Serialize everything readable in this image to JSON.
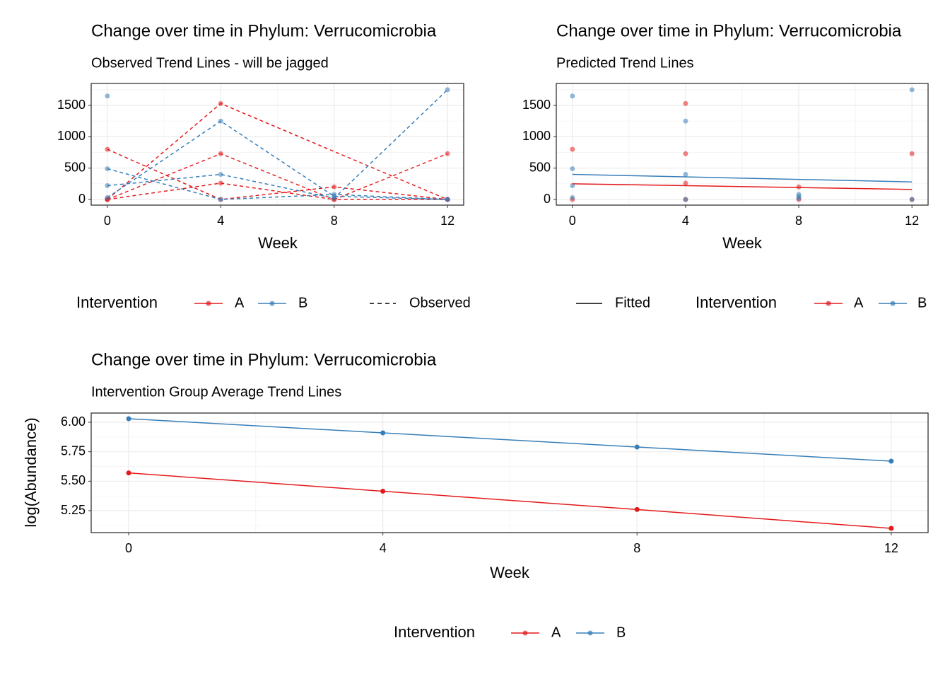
{
  "chart_data": [
    {
      "type": "line",
      "title": "Change over time in Phylum: Verrucomicrobia",
      "subtitle": "Observed Trend Lines - will be jagged",
      "xlabel": "Week",
      "xlim": [
        -0.57,
        12.57
      ],
      "ylim": [
        -90,
        1850
      ],
      "xticks": [
        0,
        4,
        8,
        12
      ],
      "yticks": [
        0,
        500,
        1000,
        1500
      ],
      "grid": true,
      "legend": {
        "title": "Intervention",
        "items": [
          {
            "name": "A",
            "color": "#E41A1C"
          },
          {
            "name": "B",
            "color": "#377EB8"
          }
        ],
        "linetype": "Observed"
      },
      "series": [
        {
          "color": "#E41A1C",
          "dash": true,
          "x": [
            0,
            4,
            8,
            12
          ],
          "values": [
            800,
            0,
            200,
            0
          ]
        },
        {
          "color": "#E41A1C",
          "dash": true,
          "x": [
            0,
            4,
            12
          ],
          "values": [
            0,
            1530,
            0
          ]
        },
        {
          "color": "#E41A1C",
          "dash": true,
          "x": [
            0,
            4,
            8,
            12
          ],
          "values": [
            0,
            730,
            0,
            0
          ]
        },
        {
          "color": "#E41A1C",
          "dash": true,
          "x": [
            0,
            4,
            8,
            12
          ],
          "values": [
            0,
            260,
            0,
            730
          ]
        },
        {
          "color": "#377EB8",
          "dash": true,
          "x": [
            0
          ],
          "values": [
            1650
          ]
        },
        {
          "color": "#377EB8",
          "dash": true,
          "x": [
            0,
            4,
            8,
            12
          ],
          "values": [
            490,
            0,
            80,
            0
          ]
        },
        {
          "color": "#377EB8",
          "dash": true,
          "x": [
            0,
            4,
            8,
            12
          ],
          "values": [
            30,
            1250,
            50,
            0
          ]
        },
        {
          "color": "#377EB8",
          "dash": true,
          "x": [
            0,
            4,
            8,
            12
          ],
          "values": [
            220,
            400,
            20,
            1750
          ]
        }
      ]
    },
    {
      "type": "line",
      "title": "Change over time in Phylum: Verrucomicrobia",
      "subtitle": "Predicted Trend Lines",
      "xlabel": "Week",
      "xlim": [
        -0.57,
        12.57
      ],
      "ylim": [
        -90,
        1850
      ],
      "xticks": [
        0,
        4,
        8,
        12
      ],
      "yticks": [
        0,
        500,
        1000,
        1500
      ],
      "grid": true,
      "legend": {
        "title": "Intervention",
        "items": [
          {
            "name": "A",
            "color": "#E41A1C"
          },
          {
            "name": "B",
            "color": "#377EB8"
          }
        ],
        "linetype": "Fitted"
      },
      "series": [
        {
          "color": "#E41A1C",
          "mode": "points",
          "x": [
            0,
            0,
            4,
            4,
            4,
            4,
            8,
            8,
            12,
            12
          ],
          "values": [
            800,
            0,
            1530,
            730,
            260,
            0,
            200,
            0,
            730,
            0
          ]
        },
        {
          "color": "#377EB8",
          "mode": "points",
          "x": [
            0,
            0,
            0,
            0,
            4,
            4,
            4,
            8,
            8,
            8,
            12,
            12
          ],
          "values": [
            1650,
            490,
            220,
            30,
            1250,
            400,
            0,
            80,
            50,
            20,
            1750,
            0
          ]
        },
        {
          "color": "#E41A1C",
          "mode": "line",
          "x": [
            0,
            12
          ],
          "values": [
            250,
            160
          ]
        },
        {
          "color": "#377EB8",
          "mode": "line",
          "x": [
            0,
            12
          ],
          "values": [
            400,
            280
          ]
        }
      ]
    },
    {
      "type": "line",
      "title": "Change over time in Phylum: Verrucomicrobia",
      "subtitle": "Intervention Group Average Trend Lines",
      "xlabel": "Week",
      "ylabel": "log(Abundance)",
      "xlim": [
        -0.59,
        12.58
      ],
      "ylim": [
        5.064,
        6.078
      ],
      "xticks": [
        0,
        4,
        8,
        12
      ],
      "yticks": [
        5.25,
        {
          "value": 5.5,
          "label": "5.50"
        },
        5.75,
        {
          "value": 6,
          "label": "6.00"
        }
      ],
      "grid": true,
      "legend": {
        "title": "Intervention",
        "items": [
          {
            "name": "A",
            "color": "#E41A1C"
          },
          {
            "name": "B",
            "color": "#377EB8"
          }
        ]
      },
      "series": [
        {
          "color": "#E41A1C",
          "mode": "both",
          "x": [
            0,
            4,
            8,
            12
          ],
          "values": [
            5.57,
            5.415,
            5.26,
            5.1
          ]
        },
        {
          "color": "#377EB8",
          "mode": "both",
          "x": [
            0,
            4,
            8,
            12
          ],
          "values": [
            6.03,
            5.91,
            5.79,
            5.67
          ]
        }
      ]
    }
  ]
}
